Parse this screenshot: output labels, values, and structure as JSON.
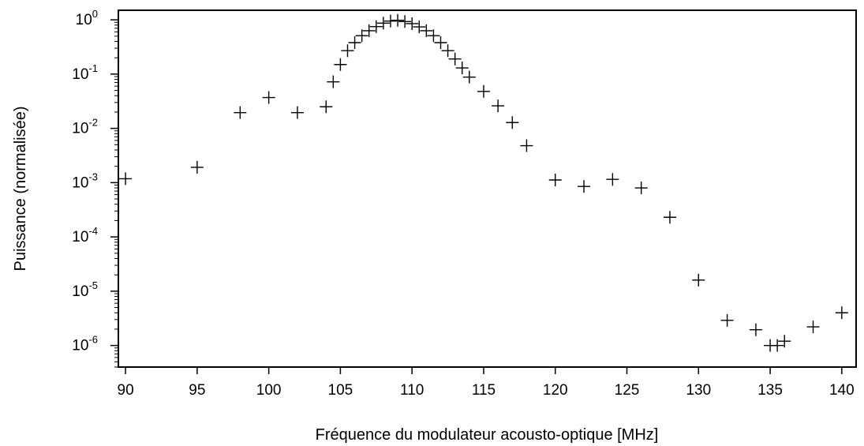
{
  "chart_data": {
    "type": "scatter",
    "marker": "plus",
    "title": "",
    "xlabel": "Fréquence du modulateur acousto-optique [MHz]",
    "ylabel": "Puissance (normalisée)",
    "xlim": [
      89.5,
      141.0
    ],
    "ylim": [
      4e-07,
      1.5
    ],
    "yscale": "log",
    "grid": false,
    "legend": "none",
    "x_ticks": [
      "90",
      "95",
      "100",
      "105",
      "110",
      "115",
      "120",
      "125",
      "130",
      "135",
      "140"
    ],
    "y_ticks": [
      {
        "base": "10",
        "exp": "0"
      },
      {
        "base": "10",
        "exp": "-1"
      },
      {
        "base": "10",
        "exp": "-2"
      },
      {
        "base": "10",
        "exp": "-3"
      },
      {
        "base": "10",
        "exp": "-4"
      },
      {
        "base": "10",
        "exp": "-5"
      },
      {
        "base": "10",
        "exp": "-6"
      }
    ],
    "series": [
      {
        "color": "#000000",
        "points": [
          [
            90,
            0.00118
          ],
          [
            95,
            0.00192
          ],
          [
            98,
            0.0195
          ],
          [
            100,
            0.037
          ],
          [
            102,
            0.0195
          ],
          [
            104,
            0.025
          ],
          [
            104.5,
            0.072
          ],
          [
            105,
            0.15
          ],
          [
            105.5,
            0.27
          ],
          [
            106,
            0.38
          ],
          [
            106.5,
            0.51
          ],
          [
            107,
            0.63
          ],
          [
            107.5,
            0.75
          ],
          [
            108,
            0.87
          ],
          [
            108.5,
            0.95
          ],
          [
            109,
            0.98
          ],
          [
            109.5,
            0.93
          ],
          [
            110,
            0.85
          ],
          [
            110.5,
            0.74
          ],
          [
            111,
            0.63
          ],
          [
            111.5,
            0.51
          ],
          [
            112,
            0.38
          ],
          [
            112.5,
            0.27
          ],
          [
            113,
            0.19
          ],
          [
            113.5,
            0.13
          ],
          [
            114,
            0.088
          ],
          [
            115,
            0.048
          ],
          [
            116,
            0.026
          ],
          [
            117,
            0.0128
          ],
          [
            118,
            0.0048
          ],
          [
            120,
            0.00112
          ],
          [
            122,
            0.00085
          ],
          [
            124,
            0.00115
          ],
          [
            126,
            0.0008
          ],
          [
            128,
            0.00023
          ],
          [
            130,
            1.6e-05
          ],
          [
            132,
            2.9e-06
          ],
          [
            134,
            1.95e-06
          ],
          [
            135,
            1e-06
          ],
          [
            135.5,
            1e-06
          ],
          [
            136,
            1.2e-06
          ],
          [
            138,
            2.2e-06
          ],
          [
            140,
            4e-06
          ]
        ]
      }
    ]
  }
}
